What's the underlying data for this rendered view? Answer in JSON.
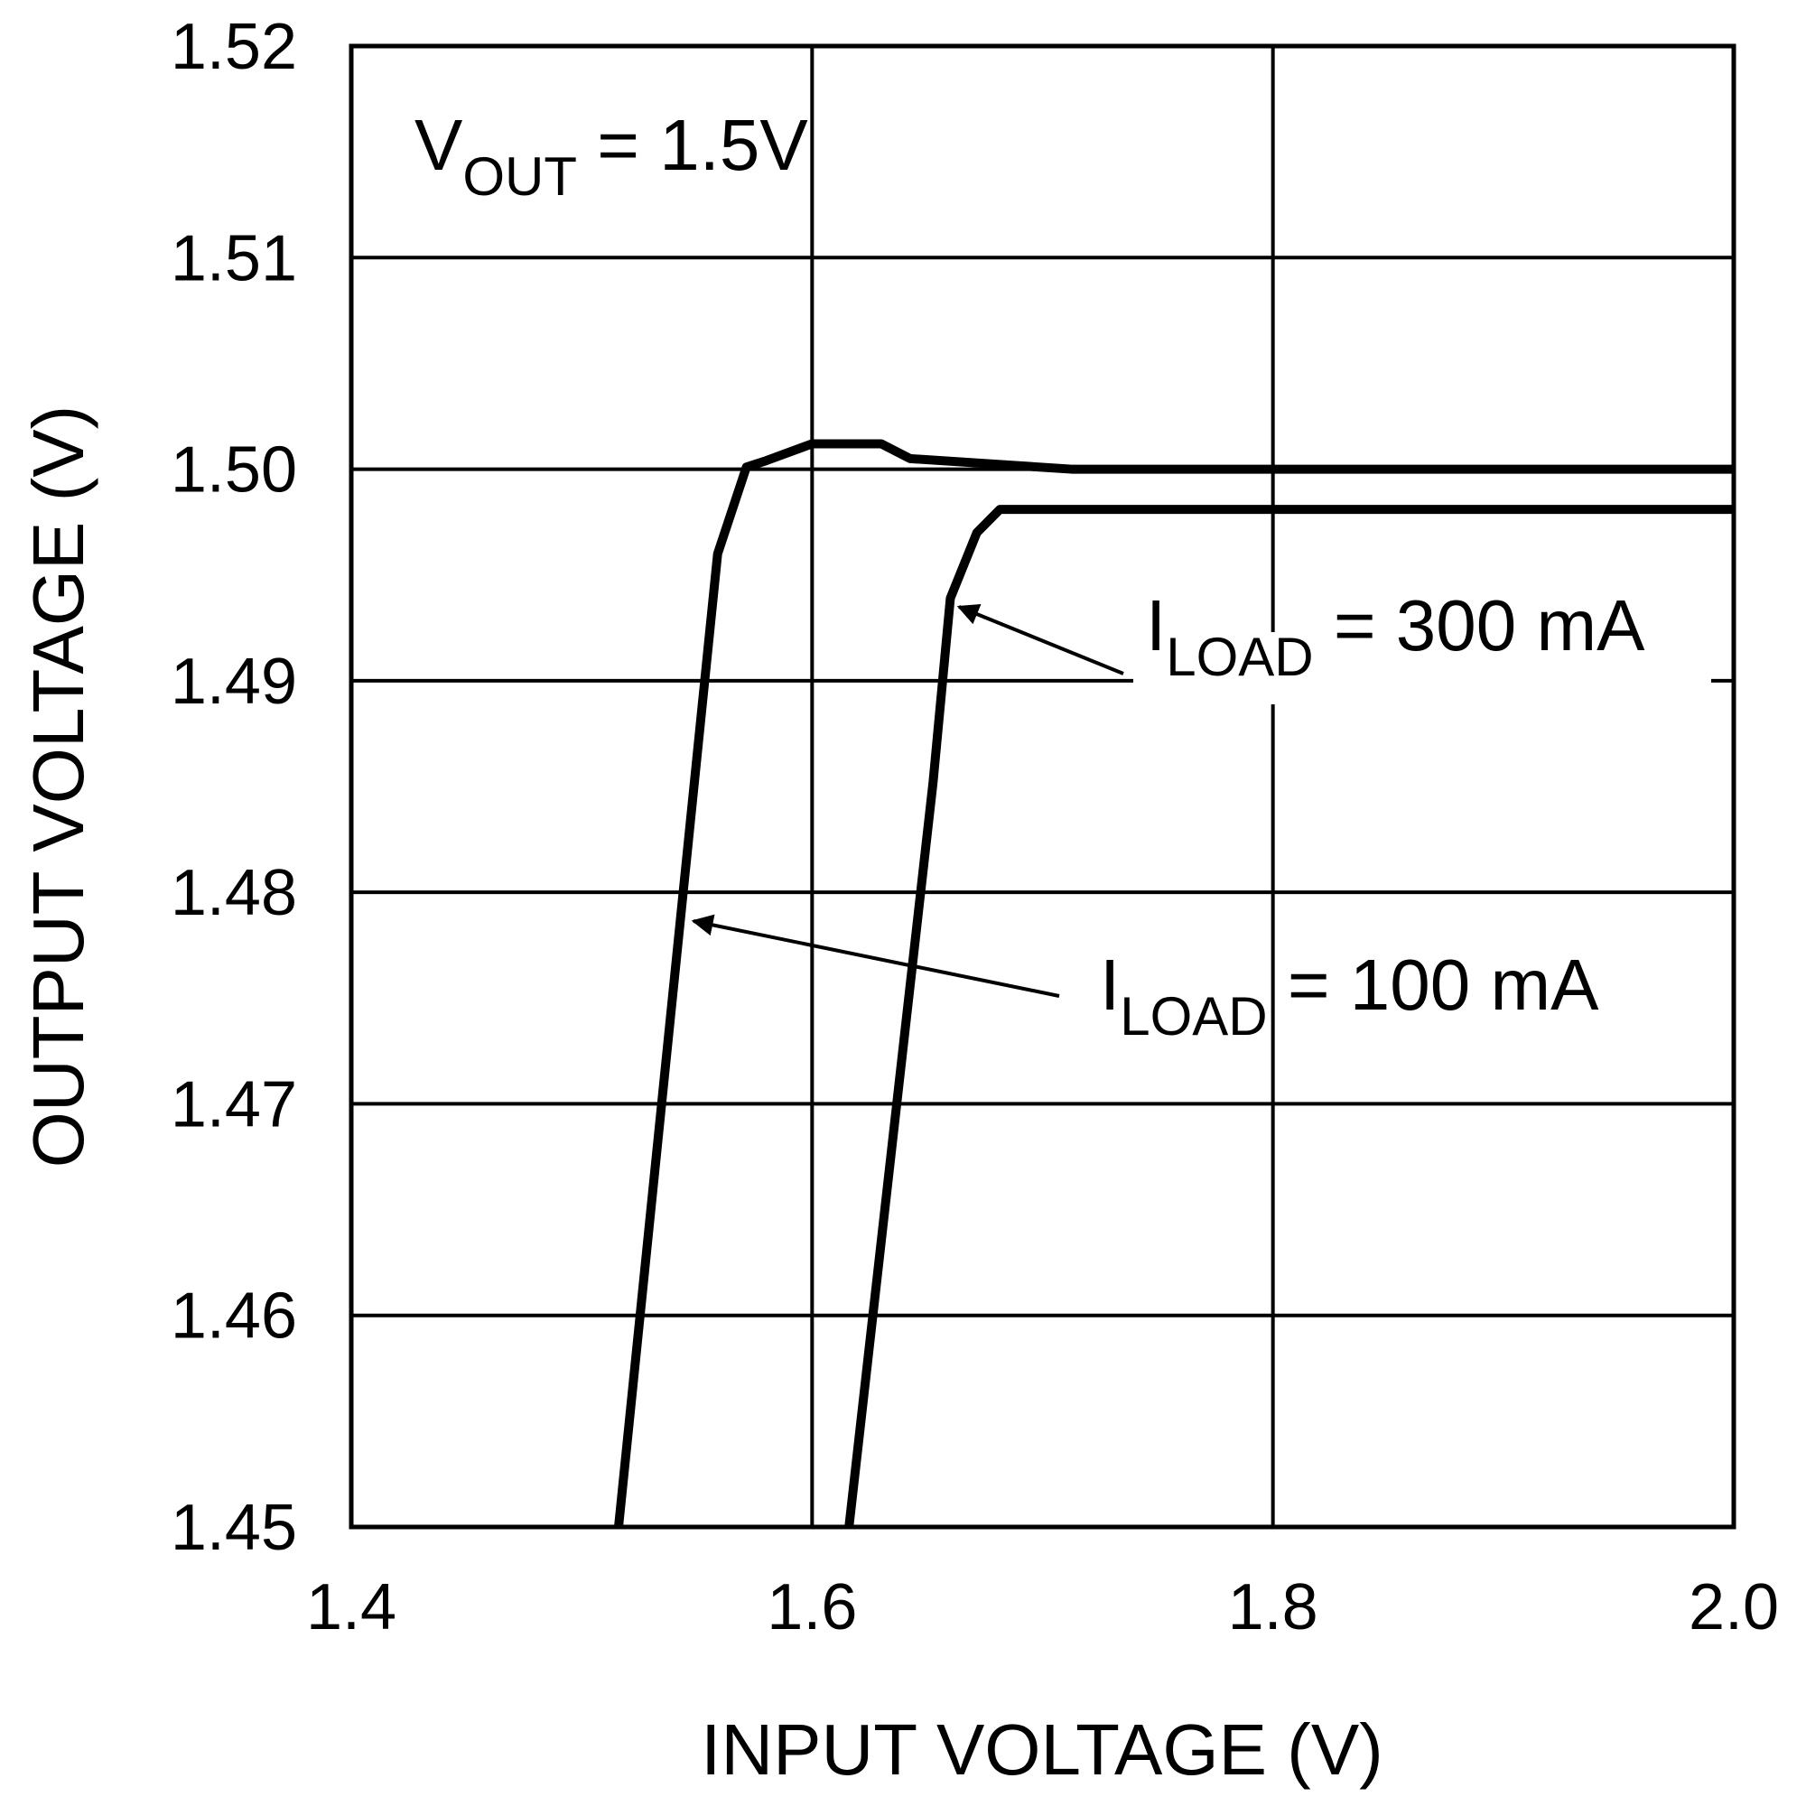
{
  "chart_data": {
    "type": "line",
    "xlabel": "INPUT VOLTAGE (V)",
    "ylabel": "OUTPUT VOLTAGE (V)",
    "xlim": [
      1.4,
      2.0
    ],
    "xticks": [
      1.4,
      1.6,
      1.8,
      {
        "value": 2.0,
        "label": "2.0"
      }
    ],
    "ylim": [
      1.45,
      1.52
    ],
    "yticks": [
      1.45,
      1.46,
      1.47,
      1.48,
      1.49,
      {
        "value": 1.5,
        "label": "1.50"
      },
      1.51,
      1.52
    ],
    "grid": true,
    "series": [
      {
        "color": "#000000",
        "x": [
          1.516,
          1.559,
          1.5715,
          1.58,
          1.6,
          1.63,
          1.6425,
          1.7125,
          2.0
        ],
        "values": [
          1.45,
          1.496,
          1.5001,
          1.5004,
          1.5012,
          1.5012,
          1.5005,
          1.5,
          1.5
        ]
      },
      {
        "color": "#000000",
        "x": [
          1.616,
          1.6525,
          1.66,
          1.6715,
          1.6815,
          2.0
        ],
        "values": [
          1.45,
          1.4852,
          1.4939,
          1.497,
          1.4981,
          1.4981
        ]
      }
    ],
    "annotations": [
      {
        "main": "V",
        "sub": "OUT",
        "rest": " = 1.5V"
      },
      {
        "main": "I",
        "sub": "LOAD",
        "rest": " = 300 mA"
      },
      {
        "main": "I",
        "sub": "LOAD",
        "rest": " = 100 mA"
      }
    ]
  }
}
